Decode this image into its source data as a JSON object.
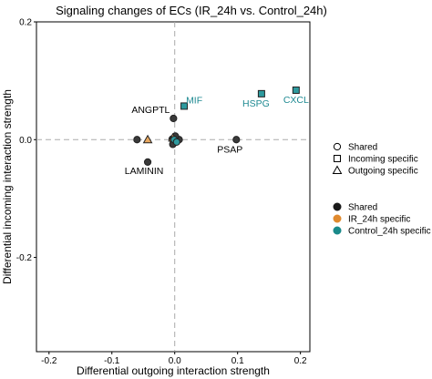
{
  "chart_data": {
    "type": "scatter",
    "title": "Signaling changes of ECs (IR_24h vs. Control_24h)",
    "xlabel": "Differential outgoing interaction strength",
    "ylabel": "Differential incoming interaction strength",
    "xlim": [
      -0.22,
      0.215
    ],
    "ylim": [
      -0.36,
      0.2
    ],
    "x_ticks": [
      -0.2,
      -0.1,
      0.0,
      0.1,
      0.2
    ],
    "x_tick_labels": [
      "-0.2",
      "-0.1",
      "0.0",
      "0.1",
      "0.2"
    ],
    "y_ticks": [
      -0.2,
      0.0,
      0.2
    ],
    "y_tick_labels": [
      "-0.2",
      "0.0",
      "0.2"
    ],
    "reference_lines": {
      "x": 0,
      "y": 0,
      "style": "dashed"
    },
    "points": [
      {
        "x": 0.015,
        "y": 0.057,
        "shape": "square",
        "group": "Control_24h specific",
        "label": "MIF"
      },
      {
        "x": 0.138,
        "y": 0.078,
        "shape": "square",
        "group": "Control_24h specific",
        "label": "HSPG"
      },
      {
        "x": 0.193,
        "y": 0.084,
        "shape": "square",
        "group": "Control_24h specific",
        "label": "CXCL"
      },
      {
        "x": -0.002,
        "y": 0.036,
        "shape": "circle",
        "group": "Shared",
        "label": "ANGPTL"
      },
      {
        "x": 0.098,
        "y": 0.0,
        "shape": "circle",
        "group": "Shared",
        "label": "PSAP"
      },
      {
        "x": -0.043,
        "y": -0.038,
        "shape": "circle",
        "group": "Shared",
        "label": "LAMININ"
      },
      {
        "x": -0.06,
        "y": 0.0,
        "shape": "circle",
        "group": "Shared",
        "label": ""
      },
      {
        "x": -0.004,
        "y": 0.001,
        "shape": "circle",
        "group": "Shared",
        "label": ""
      },
      {
        "x": 0.002,
        "y": -0.001,
        "shape": "circle",
        "group": "Shared",
        "label": ""
      },
      {
        "x": 0.007,
        "y": 0.0,
        "shape": "circle",
        "group": "Shared",
        "label": ""
      },
      {
        "x": -0.003,
        "y": -0.008,
        "shape": "circle",
        "group": "Shared",
        "label": ""
      },
      {
        "x": 0.001,
        "y": 0.006,
        "shape": "circle",
        "group": "Shared",
        "label": ""
      },
      {
        "x": -0.043,
        "y": 0.0,
        "shape": "triangle",
        "group": "IR_24h specific",
        "label": ""
      },
      {
        "x": -0.003,
        "y": 0.003,
        "shape": "triangle",
        "group": "IR_24h specific",
        "label": ""
      },
      {
        "x": -0.001,
        "y": 0.0,
        "shape": "circle",
        "group": "Control_24h specific",
        "label": ""
      },
      {
        "x": 0.003,
        "y": -0.004,
        "shape": "circle",
        "group": "Control_24h specific",
        "label": ""
      }
    ],
    "legend_shape": {
      "placement": "right",
      "items": [
        {
          "shape": "circle",
          "label": "Shared"
        },
        {
          "shape": "square",
          "label": "Incoming specific"
        },
        {
          "shape": "triangle",
          "label": "Outgoing specific"
        }
      ]
    },
    "legend_color": {
      "placement": "right",
      "items": [
        {
          "label": "Shared",
          "color": "#1a1a1a"
        },
        {
          "label": "IR_24h specific",
          "color": "#e08a2e"
        },
        {
          "label": "Control_24h specific",
          "color": "#1a8a8a"
        }
      ]
    },
    "colors": {
      "Shared": "#3a3a3a",
      "IR_24h specific": "#e8a860",
      "Control_24h specific": "#2e9a9e",
      "Control_label": "#1f8a92",
      "Shared_label": "#000000"
    }
  }
}
